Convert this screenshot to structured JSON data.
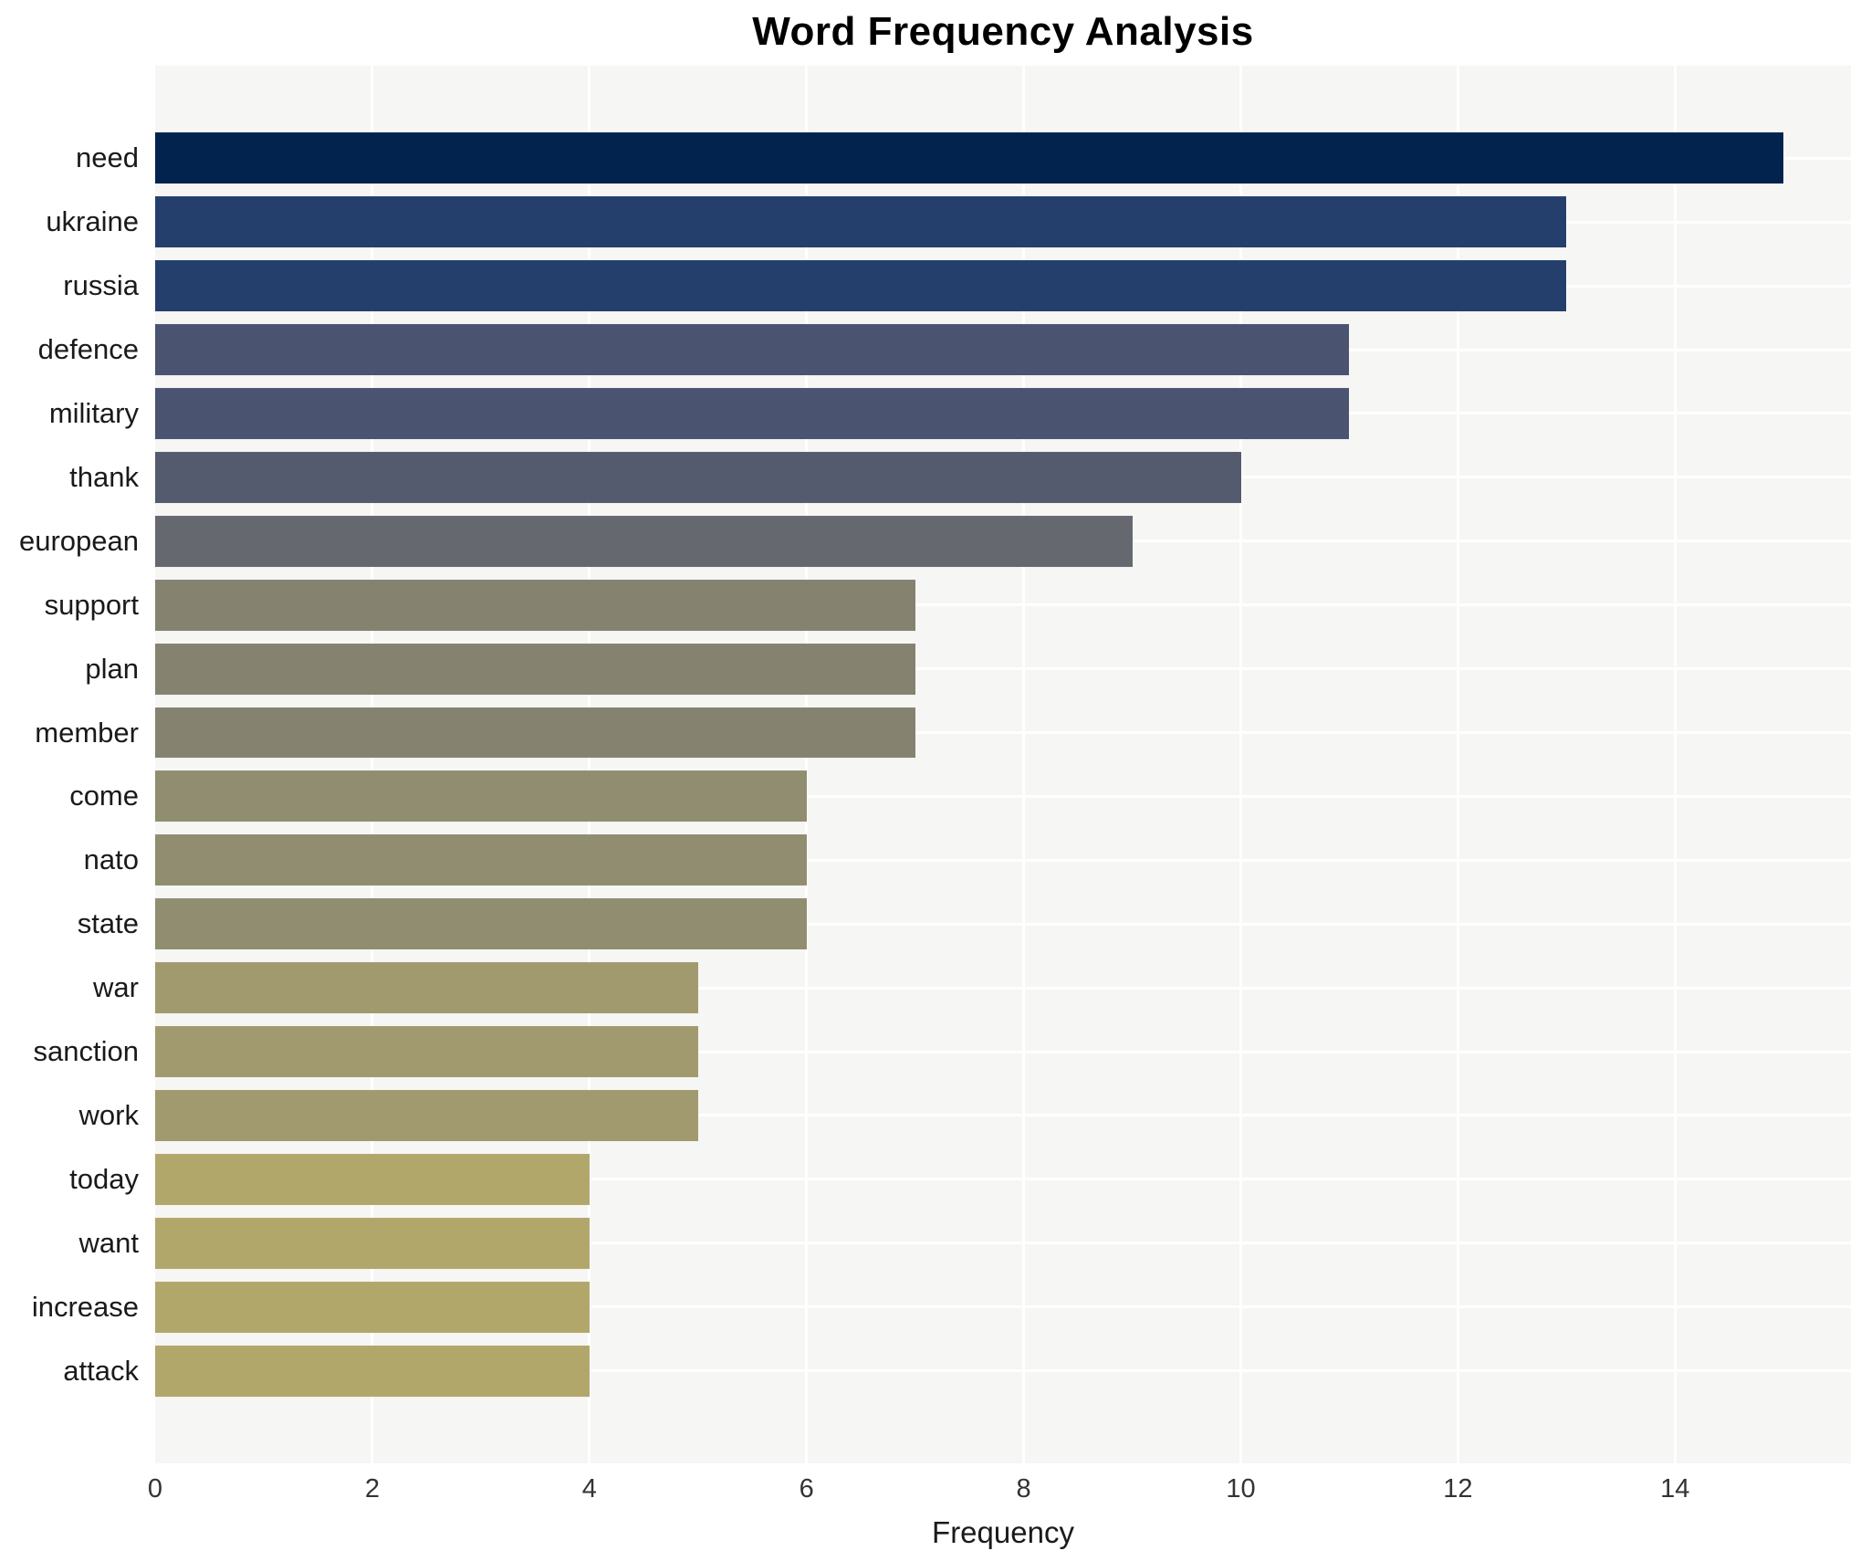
{
  "chart_data": {
    "type": "bar",
    "orientation": "horizontal",
    "title": "Word Frequency Analysis",
    "xlabel": "Frequency",
    "ylabel": "",
    "categories": [
      "need",
      "ukraine",
      "russia",
      "defence",
      "military",
      "thank",
      "european",
      "support",
      "plan",
      "member",
      "come",
      "nato",
      "state",
      "war",
      "sanction",
      "work",
      "today",
      "want",
      "increase",
      "attack"
    ],
    "values": [
      15,
      13,
      13,
      11,
      11,
      10,
      9,
      7,
      7,
      7,
      6,
      6,
      6,
      5,
      5,
      5,
      4,
      4,
      4,
      4
    ],
    "bar_colors": [
      "#02234e",
      "#253f6c",
      "#253f6c",
      "#4a5370",
      "#4a5370",
      "#555b6e",
      "#66686f",
      "#858270",
      "#858270",
      "#858270",
      "#918d71",
      "#918d71",
      "#918d71",
      "#a19a6e",
      "#a19a6e",
      "#a19a6e",
      "#b1a76a",
      "#b1a76a",
      "#b1a76a",
      "#b1a76a"
    ],
    "x_ticks": [
      0,
      2,
      4,
      6,
      8,
      10,
      12,
      14
    ],
    "xlim": [
      0,
      15.62
    ],
    "grid": "white-on-gray",
    "panel_background": "#f6f6f5",
    "figure_background": "#ffffff",
    "gridline_color": "#ffffff",
    "legend": "none"
  }
}
